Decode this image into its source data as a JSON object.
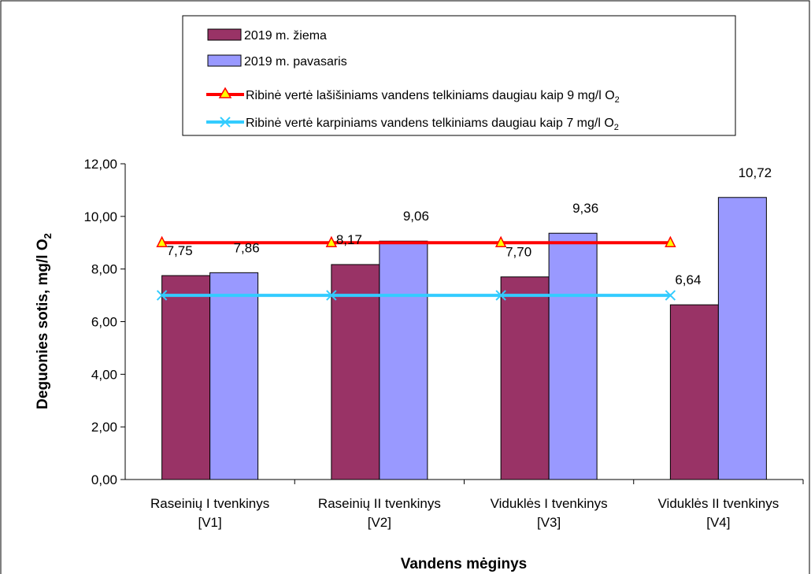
{
  "chart_data": {
    "type": "bar",
    "categories": [
      [
        "Raseinių I tvenkinys",
        "[V1]"
      ],
      [
        "Raseinių II tvenkinys",
        "[V2]"
      ],
      [
        "Viduklės I tvenkinys",
        "[V3]"
      ],
      [
        "Viduklės II tvenkinys",
        "[V4]"
      ]
    ],
    "series": [
      {
        "name": "2019 m. žiema",
        "values": [
          7.75,
          8.17,
          7.7,
          6.64
        ],
        "labels": [
          "7,75",
          "8,17",
          "7,70",
          "6,64"
        ],
        "color": "#993366"
      },
      {
        "name": "2019 m. pavasaris",
        "values": [
          7.86,
          9.06,
          9.36,
          10.72
        ],
        "labels": [
          "7,86",
          "9,06",
          "9,36",
          "10,72"
        ],
        "color": "#9999ff"
      }
    ],
    "lines": [
      {
        "name_main": "Ribinė vertė lašišiniams vandens telkiniams daugiau kaip 9 mg/l O",
        "name_sub": "2",
        "values": [
          9,
          9,
          9,
          9
        ],
        "color": "#ff0000",
        "marker": "triangle",
        "marker_color": "#ffff00"
      },
      {
        "name_main": "Ribinė vertė karpiniams vandens telkiniams daugiau kaip 7 mg/l O",
        "name_sub": "2",
        "values": [
          7,
          7,
          7,
          7
        ],
        "color": "#33ccff",
        "marker": "x",
        "marker_color": "#33ccff"
      }
    ],
    "y_ticks": [
      "0,00",
      "2,00",
      "4,00",
      "6,00",
      "8,00",
      "10,00",
      "12,00"
    ],
    "ylim": [
      0,
      12
    ],
    "ylabel_main": "Deguonies sotis, mg/l O",
    "ylabel_sub": "2",
    "xlabel": "Vandens mėginys",
    "legend_position": "top-center",
    "grid": false
  }
}
